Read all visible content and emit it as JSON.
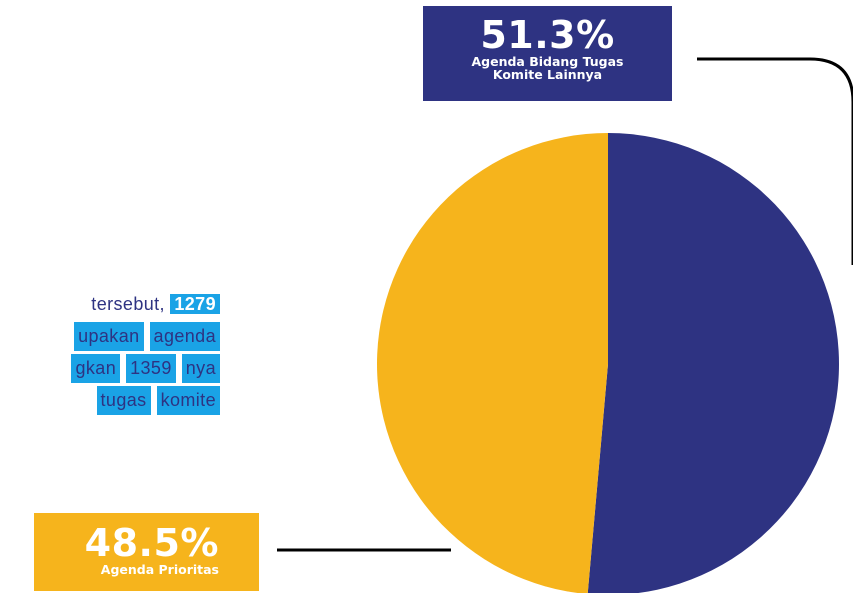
{
  "text_excerpt": {
    "line1_text": "tersebut,",
    "line1_number": "1279",
    "line2_a": "upakan",
    "line2_b": "agenda",
    "line3_a": "gkan",
    "line3_b": "1359",
    "line3_c": "nya",
    "line4_a": "tugas",
    "line4_b": "komite"
  },
  "chart_data": {
    "type": "pie",
    "slices": [
      {
        "label": "Agenda Bidang Tugas Komite Lainnya",
        "value": 51.3,
        "display": "51.3%",
        "color": "#2e3382"
      },
      {
        "label": "Agenda Prioritas",
        "value": 48.5,
        "display": "48.5%",
        "color": "#f6b41c"
      }
    ],
    "legend": "none"
  },
  "labels": {
    "blue_pct": "51.3%",
    "blue_caption_line1": "Agenda Bidang Tugas",
    "blue_caption_line2": "Komite Lainnya",
    "yellow_pct": "48.5%",
    "yellow_caption": "Agenda Prioritas"
  },
  "colors": {
    "navy": "#2e3382",
    "yellow": "#f6b41c",
    "highlight_blue": "#1aa3e6"
  }
}
